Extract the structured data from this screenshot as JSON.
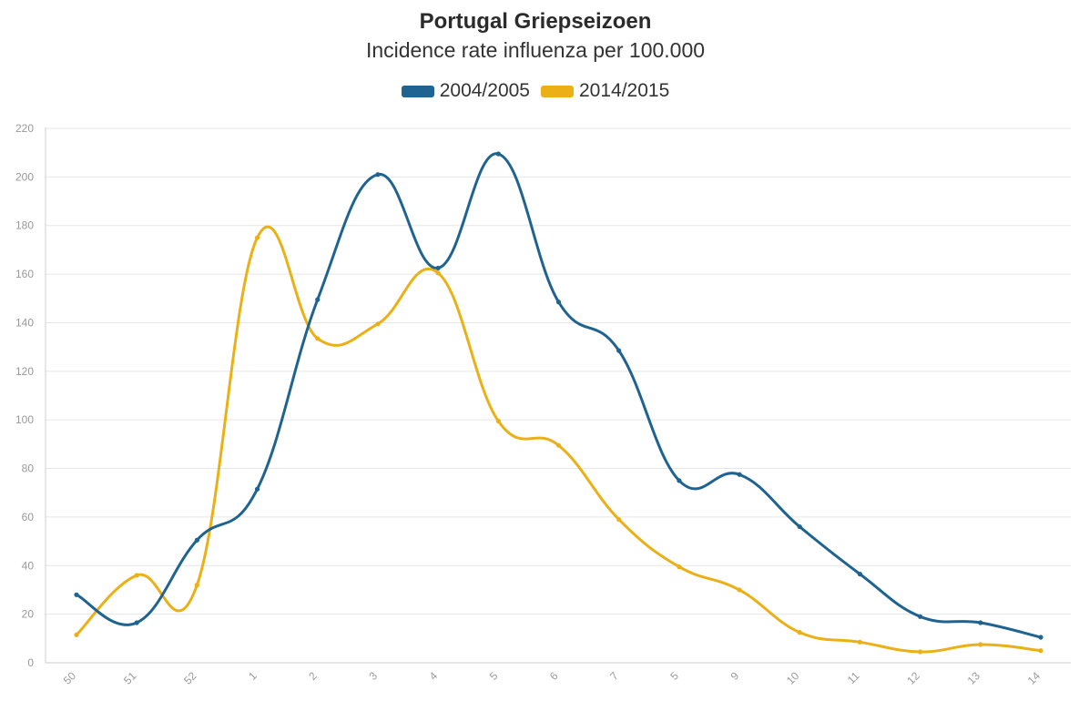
{
  "chart_data": {
    "type": "line",
    "title": "Portugal Griepseizoen",
    "subtitle": "Incidence rate influenza per 100.000",
    "xlabel": "",
    "ylabel": "",
    "categories": [
      "50",
      "51",
      "52",
      "1",
      "2",
      "3",
      "4",
      "5",
      "6",
      "7",
      "5",
      "9",
      "10",
      "11",
      "12",
      "13",
      "14"
    ],
    "ylim": [
      0,
      220
    ],
    "yticks": [
      0,
      20,
      40,
      60,
      80,
      100,
      120,
      140,
      160,
      180,
      200,
      220
    ],
    "grid": true,
    "legend_position": "top-center",
    "series": [
      {
        "name": "2004/2005",
        "color": "#1f6391",
        "values": [
          28,
          16.5,
          50.5,
          71.5,
          149.5,
          201,
          162.5,
          209.5,
          148.5,
          128.5,
          75,
          77.5,
          56,
          36.5,
          19,
          16.5,
          10.5
        ]
      },
      {
        "name": "2014/2015",
        "color": "#ebb015",
        "values": [
          11.5,
          36,
          32,
          175,
          133.5,
          139.5,
          160.5,
          99.5,
          89.5,
          59,
          39.5,
          30,
          12.5,
          8.5,
          4.5,
          7.5,
          5
        ]
      }
    ]
  }
}
